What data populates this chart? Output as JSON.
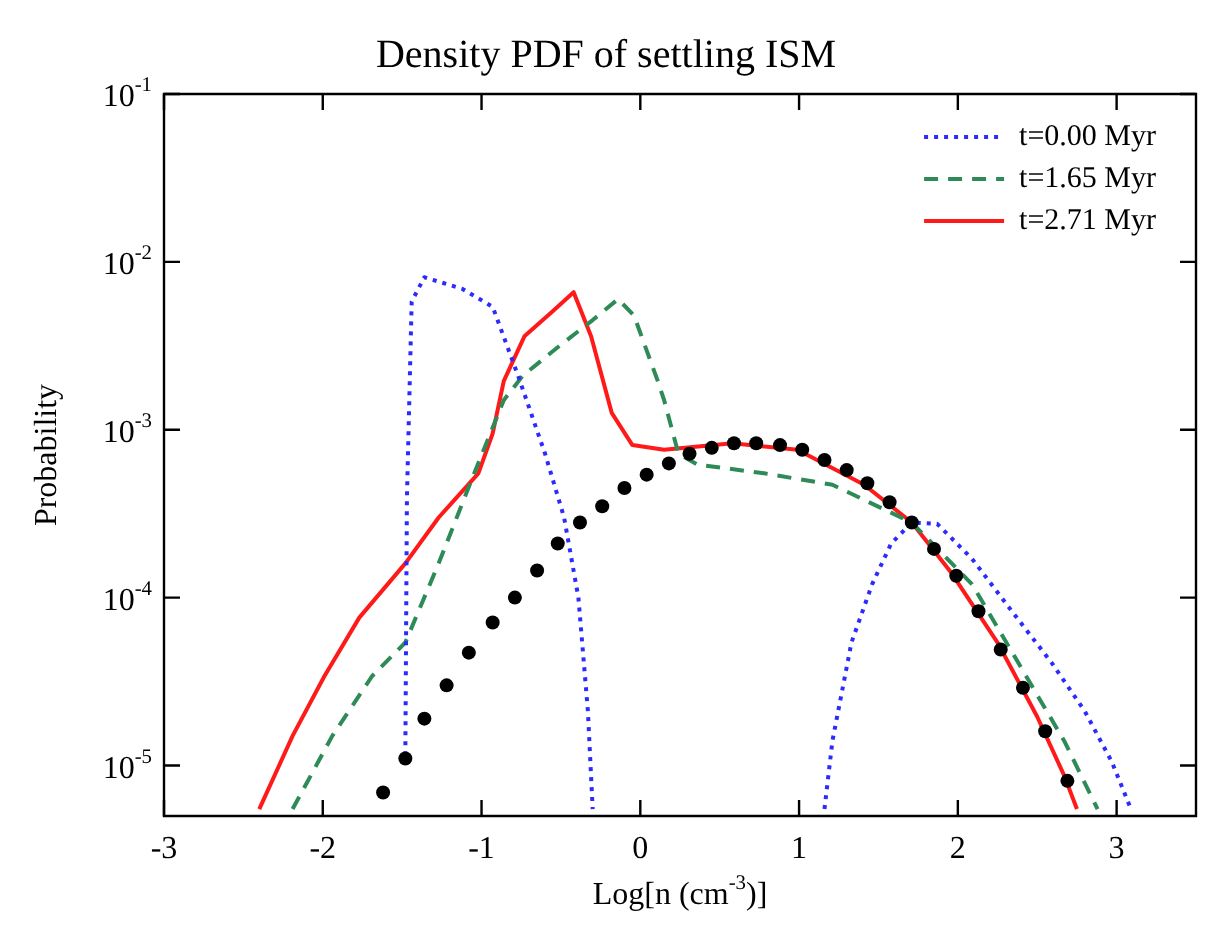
{
  "chart_data": {
    "type": "line",
    "title": "Density PDF of settling ISM",
    "xlabel": "Log[n (cm$^{-3}$)]",
    "ylabel": "Probability",
    "xlim": [
      -3,
      3.5
    ],
    "xticks": [
      -3,
      -2,
      -1,
      0,
      1,
      2,
      3
    ],
    "ylim": [
      5e-06,
      0.1
    ],
    "yticks": [
      {
        "value": 0.1,
        "label": "10$^{-1}$"
      },
      {
        "value": 0.01,
        "label": "10$^{-2}$"
      },
      {
        "value": 0.001,
        "label": "10$^{-3}$"
      },
      {
        "value": 0.0001,
        "label": "10$^{-4}$"
      },
      {
        "value": 1e-05,
        "label": "10$^{-5}$"
      }
    ],
    "log": "y",
    "legend": "top right",
    "marker": "none",
    "series": [
      {
        "name": "t=0.00 Myr",
        "color": "#2b2bff",
        "line_style": "dotted",
        "x": [
          -1.48,
          -1.47,
          -1.44,
          -1.36,
          -1.12,
          -0.93,
          -0.77,
          -0.6,
          -0.48,
          -0.39,
          -0.33,
          -0.3,
          null,
          1.16,
          1.21,
          1.33,
          1.46,
          1.58,
          1.71,
          1.87,
          2.09,
          2.34,
          2.59,
          2.8,
          2.97,
          3.09
        ],
        "values": [
          1.15e-05,
          0.00039,
          0.0058,
          0.0081,
          0.0069,
          0.0054,
          0.0021,
          0.00072,
          0.0003,
          0.0001,
          2.1e-05,
          5.5e-06,
          null,
          5.5e-06,
          1.4e-05,
          5.4e-05,
          0.00012,
          0.00021,
          0.00028,
          0.000275,
          0.00017,
          8.3e-05,
          4.1e-05,
          2.1e-05,
          1.05e-05,
          5.5e-06
        ]
      },
      {
        "name": "t=1.65 Myr",
        "color": "#2e8b57",
        "line_style": "dashed",
        "x": [
          -2.19,
          -1.94,
          -1.69,
          -1.48,
          -1.27,
          -1.06,
          -0.86,
          -0.74,
          -0.52,
          -0.3,
          -0.14,
          -0.04,
          0.11,
          0.15,
          0.24,
          0.36,
          0.78,
          1.21,
          1.71,
          2.09,
          2.38,
          2.67,
          2.88
        ],
        "values": [
          5.5e-06,
          1.5e-05,
          3.4e-05,
          5.4e-05,
          0.00016,
          0.00051,
          0.0015,
          0.0021,
          0.0031,
          0.0045,
          0.006,
          0.0048,
          0.00195,
          0.0015,
          0.00072,
          0.00062,
          0.00055,
          0.00047,
          0.00028,
          0.00012,
          4.1e-05,
          1.4e-05,
          5.5e-06
        ]
      },
      {
        "name": "t=2.71 Myr",
        "color": "#ff1a1a",
        "line_style": "solid",
        "x": [
          -2.4,
          -2.19,
          -1.99,
          -1.77,
          -1.48,
          -1.27,
          -1.02,
          -0.93,
          -0.86,
          -0.73,
          -0.55,
          -0.42,
          -0.31,
          -0.18,
          -0.05,
          0.15,
          0.58,
          0.99,
          1.41,
          1.71,
          1.96,
          2.25,
          2.5,
          2.67,
          2.75
        ],
        "values": [
          5.5e-06,
          1.5e-05,
          3.4e-05,
          7.6e-05,
          0.00016,
          0.0003,
          0.00055,
          0.00095,
          0.00195,
          0.0036,
          0.0051,
          0.0066,
          0.0036,
          0.00126,
          0.00081,
          0.00076,
          0.00083,
          0.00076,
          0.00047,
          0.00028,
          0.00014,
          5.4e-05,
          1.95e-05,
          8.7e-06,
          5.5e-06
        ]
      },
      {
        "type": "scatter",
        "color": "#000000",
        "marker": "circle",
        "x": [
          -1.62,
          -1.48,
          -1.36,
          -1.22,
          -1.08,
          -0.93,
          -0.79,
          -0.65,
          -0.52,
          -0.38,
          -0.24,
          -0.1,
          0.04,
          0.18,
          0.31,
          0.45,
          0.59,
          0.73,
          0.88,
          1.02,
          1.16,
          1.3,
          1.43,
          1.57,
          1.71,
          1.85,
          1.99,
          2.13,
          2.27,
          2.41,
          2.55,
          2.69
        ],
        "values": [
          6.9e-06,
          1.1e-05,
          1.9e-05,
          3e-05,
          4.7e-05,
          7.1e-05,
          0.0001,
          0.000145,
          0.00021,
          0.00028,
          0.00035,
          0.00045,
          0.00054,
          0.00063,
          0.00072,
          0.00078,
          0.00083,
          0.00083,
          0.00081,
          0.00076,
          0.00066,
          0.000575,
          0.00048,
          0.00037,
          0.00028,
          0.000195,
          0.000135,
          8.3e-05,
          4.9e-05,
          2.9e-05,
          1.6e-05,
          8.1e-06
        ]
      }
    ]
  }
}
